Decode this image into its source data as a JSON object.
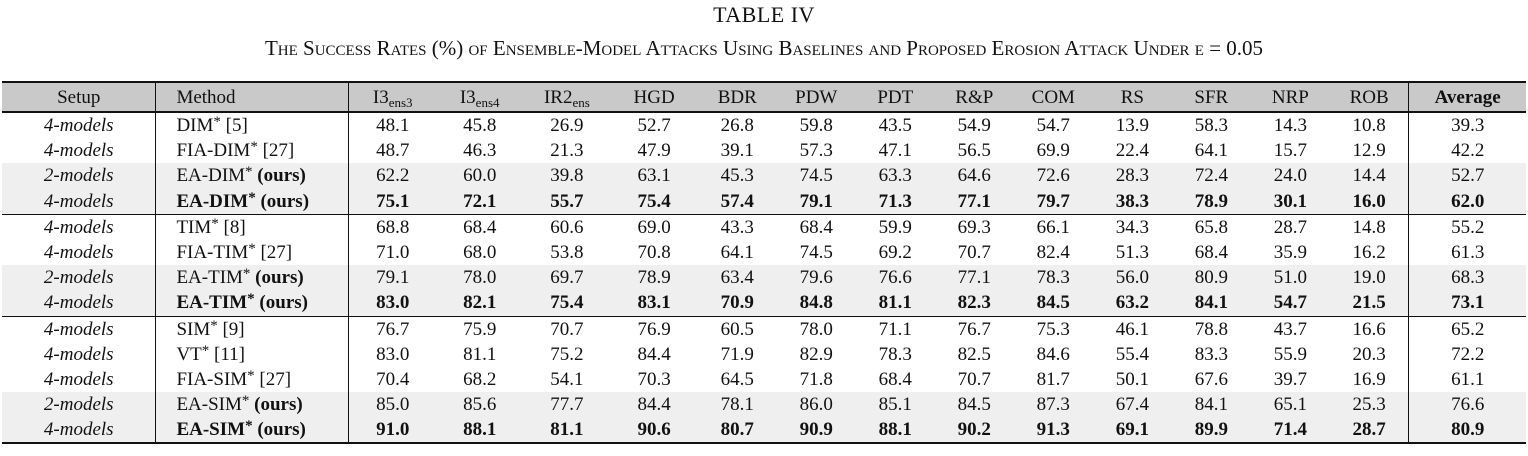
{
  "caption": {
    "title": "TABLE IV",
    "subtitle": "The Success Rates (%) of Ensemble-Model Attacks Using Baselines and Proposed Erosion Attack Under ϵ = 0.05"
  },
  "columns": {
    "setup": "Setup",
    "method": "Method",
    "metrics": [
      {
        "base": "I3",
        "sub": "ens3"
      },
      {
        "base": "I3",
        "sub": "ens4"
      },
      {
        "base": "IR2",
        "sub": "ens"
      },
      {
        "base": "HGD",
        "sub": ""
      },
      {
        "base": "BDR",
        "sub": ""
      },
      {
        "base": "PDW",
        "sub": ""
      },
      {
        "base": "PDT",
        "sub": ""
      },
      {
        "base": "R&P",
        "sub": ""
      },
      {
        "base": "COM",
        "sub": ""
      },
      {
        "base": "RS",
        "sub": ""
      },
      {
        "base": "SFR",
        "sub": ""
      },
      {
        "base": "NRP",
        "sub": ""
      },
      {
        "base": "ROB",
        "sub": ""
      }
    ],
    "average": "Average"
  },
  "groups": [
    {
      "rows": [
        {
          "setup": "4-models",
          "method": "DIM",
          "ref": "[5]",
          "shade": false,
          "bold": false,
          "values": [
            "48.1",
            "45.8",
            "26.9",
            "52.7",
            "26.8",
            "59.8",
            "43.5",
            "54.9",
            "54.7",
            "13.9",
            "58.3",
            "14.3",
            "10.8"
          ],
          "average": "39.3"
        },
        {
          "setup": "4-models",
          "method": "FIA-DIM",
          "ref": "[27]",
          "shade": false,
          "bold": false,
          "values": [
            "48.7",
            "46.3",
            "21.3",
            "47.9",
            "39.1",
            "57.3",
            "47.1",
            "56.5",
            "69.9",
            "22.4",
            "64.1",
            "15.7",
            "12.9"
          ],
          "average": "42.2"
        },
        {
          "setup": "2-models",
          "method": "EA-DIM",
          "ref": "(ours)",
          "shade": true,
          "bold": false,
          "values": [
            "62.2",
            "60.0",
            "39.8",
            "63.1",
            "45.3",
            "74.5",
            "63.3",
            "64.6",
            "72.6",
            "28.3",
            "72.4",
            "24.0",
            "14.4"
          ],
          "average": "52.7"
        },
        {
          "setup": "4-models",
          "method": "EA-DIM",
          "ref": "(ours)",
          "shade": true,
          "bold": true,
          "values": [
            "75.1",
            "72.1",
            "55.7",
            "75.4",
            "57.4",
            "79.1",
            "71.3",
            "77.1",
            "79.7",
            "38.3",
            "78.9",
            "30.1",
            "16.0"
          ],
          "average": "62.0"
        }
      ]
    },
    {
      "rows": [
        {
          "setup": "4-models",
          "method": "TIM",
          "ref": "[8]",
          "shade": false,
          "bold": false,
          "values": [
            "68.8",
            "68.4",
            "60.6",
            "69.0",
            "43.3",
            "68.4",
            "59.9",
            "69.3",
            "66.1",
            "34.3",
            "65.8",
            "28.7",
            "14.8"
          ],
          "average": "55.2"
        },
        {
          "setup": "4-models",
          "method": "FIA-TIM",
          "ref": "[27]",
          "shade": false,
          "bold": false,
          "values": [
            "71.0",
            "68.0",
            "53.8",
            "70.8",
            "64.1",
            "74.5",
            "69.2",
            "70.7",
            "82.4",
            "51.3",
            "68.4",
            "35.9",
            "16.2"
          ],
          "average": "61.3"
        },
        {
          "setup": "2-models",
          "method": "EA-TIM",
          "ref": "(ours)",
          "shade": true,
          "bold": false,
          "values": [
            "79.1",
            "78.0",
            "69.7",
            "78.9",
            "63.4",
            "79.6",
            "76.6",
            "77.1",
            "78.3",
            "56.0",
            "80.9",
            "51.0",
            "19.0"
          ],
          "average": "68.3"
        },
        {
          "setup": "4-models",
          "method": "EA-TIM",
          "ref": "(ours)",
          "shade": true,
          "bold": true,
          "values": [
            "83.0",
            "82.1",
            "75.4",
            "83.1",
            "70.9",
            "84.8",
            "81.1",
            "82.3",
            "84.5",
            "63.2",
            "84.1",
            "54.7",
            "21.5"
          ],
          "average": "73.1"
        }
      ]
    },
    {
      "rows": [
        {
          "setup": "4-models",
          "method": "SIM",
          "ref": "[9]",
          "shade": false,
          "bold": false,
          "values": [
            "76.7",
            "75.9",
            "70.7",
            "76.9",
            "60.5",
            "78.0",
            "71.1",
            "76.7",
            "75.3",
            "46.1",
            "78.8",
            "43.7",
            "16.6"
          ],
          "average": "65.2"
        },
        {
          "setup": "4-models",
          "method": "VT",
          "ref": "[11]",
          "shade": false,
          "bold": false,
          "values": [
            "83.0",
            "81.1",
            "75.2",
            "84.4",
            "71.9",
            "82.9",
            "78.3",
            "82.5",
            "84.6",
            "55.4",
            "83.3",
            "55.9",
            "20.3"
          ],
          "average": "72.2"
        },
        {
          "setup": "4-models",
          "method": "FIA-SIM",
          "ref": "[27]",
          "shade": false,
          "bold": false,
          "values": [
            "70.4",
            "68.2",
            "54.1",
            "70.3",
            "64.5",
            "71.8",
            "68.4",
            "70.7",
            "81.7",
            "50.1",
            "67.6",
            "39.7",
            "16.9"
          ],
          "average": "61.1"
        },
        {
          "setup": "2-models",
          "method": "EA-SIM",
          "ref": "(ours)",
          "shade": true,
          "bold": false,
          "values": [
            "85.0",
            "85.6",
            "77.7",
            "84.4",
            "78.1",
            "86.0",
            "85.1",
            "84.5",
            "87.3",
            "67.4",
            "84.1",
            "65.1",
            "25.3"
          ],
          "average": "76.6"
        },
        {
          "setup": "4-models",
          "method": "EA-SIM",
          "ref": "(ours)",
          "shade": true,
          "bold": true,
          "values": [
            "91.0",
            "88.1",
            "81.1",
            "90.6",
            "80.7",
            "90.9",
            "88.1",
            "90.2",
            "91.3",
            "69.1",
            "89.9",
            "71.4",
            "28.7"
          ],
          "average": "80.9"
        }
      ]
    }
  ]
}
